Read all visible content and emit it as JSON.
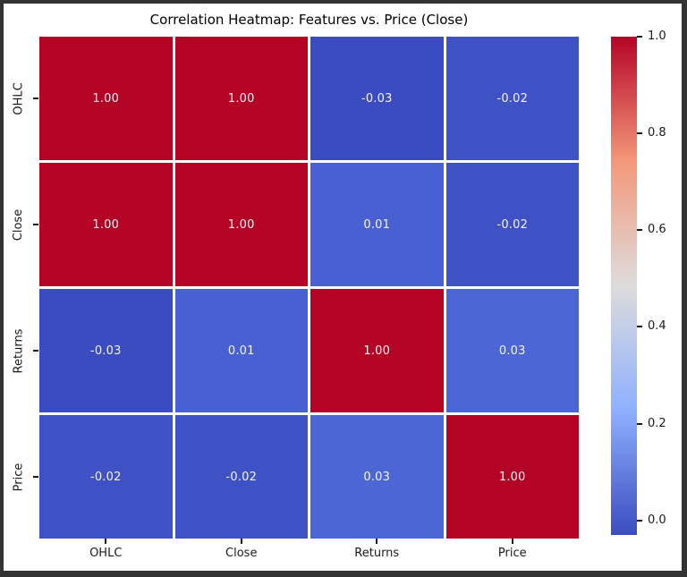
{
  "window": {
    "frame_color": "#333333",
    "background_color": "#ffffff"
  },
  "chart_data": {
    "type": "heatmap",
    "title": "Correlation Heatmap: Features vs. Price (Close)",
    "x_categories": [
      "OHLC",
      "Close",
      "Returns",
      "Price"
    ],
    "y_categories": [
      "OHLC",
      "Close",
      "Returns",
      "Price"
    ],
    "matrix": [
      [
        1.0,
        1.0,
        -0.03,
        -0.02
      ],
      [
        1.0,
        1.0,
        0.01,
        -0.02
      ],
      [
        -0.03,
        0.01,
        1.0,
        0.03
      ],
      [
        -0.02,
        -0.02,
        0.03,
        1.0
      ]
    ],
    "cell_labels": [
      [
        "1.00",
        "1.00",
        "-0.03",
        "-0.02"
      ],
      [
        "1.00",
        "1.00",
        "0.01",
        "-0.02"
      ],
      [
        "-0.03",
        "0.01",
        "1.00",
        "0.03"
      ],
      [
        "-0.02",
        "-0.02",
        "0.03",
        "1.00"
      ]
    ],
    "cell_colors": [
      [
        "#b40426",
        "#b40426",
        "#3b4cc0",
        "#3e52c5"
      ],
      [
        "#b40426",
        "#b40426",
        "#4860d1",
        "#3e52c5"
      ],
      [
        "#3b4cc0",
        "#4860d1",
        "#b40426",
        "#4c66d6"
      ],
      [
        "#3e52c5",
        "#3e52c5",
        "#4c66d6",
        "#b40426"
      ]
    ],
    "annotation_text_color": "#f5f5f5",
    "grid_line_color": "#ffffff",
    "colormap": "coolwarm",
    "colorbar": {
      "position": "right",
      "vmin": -0.03,
      "vmax": 1.0,
      "tick_values": [
        1.0,
        0.8,
        0.6,
        0.4,
        0.2,
        0.0
      ],
      "tick_labels": [
        "1.0",
        "0.8",
        "0.6",
        "0.4",
        "0.2",
        "0.0"
      ],
      "gradient_stops": [
        "#3b4cc0",
        "#8eb0fe",
        "#dddcdc",
        "#f4987a",
        "#b40426"
      ]
    }
  }
}
